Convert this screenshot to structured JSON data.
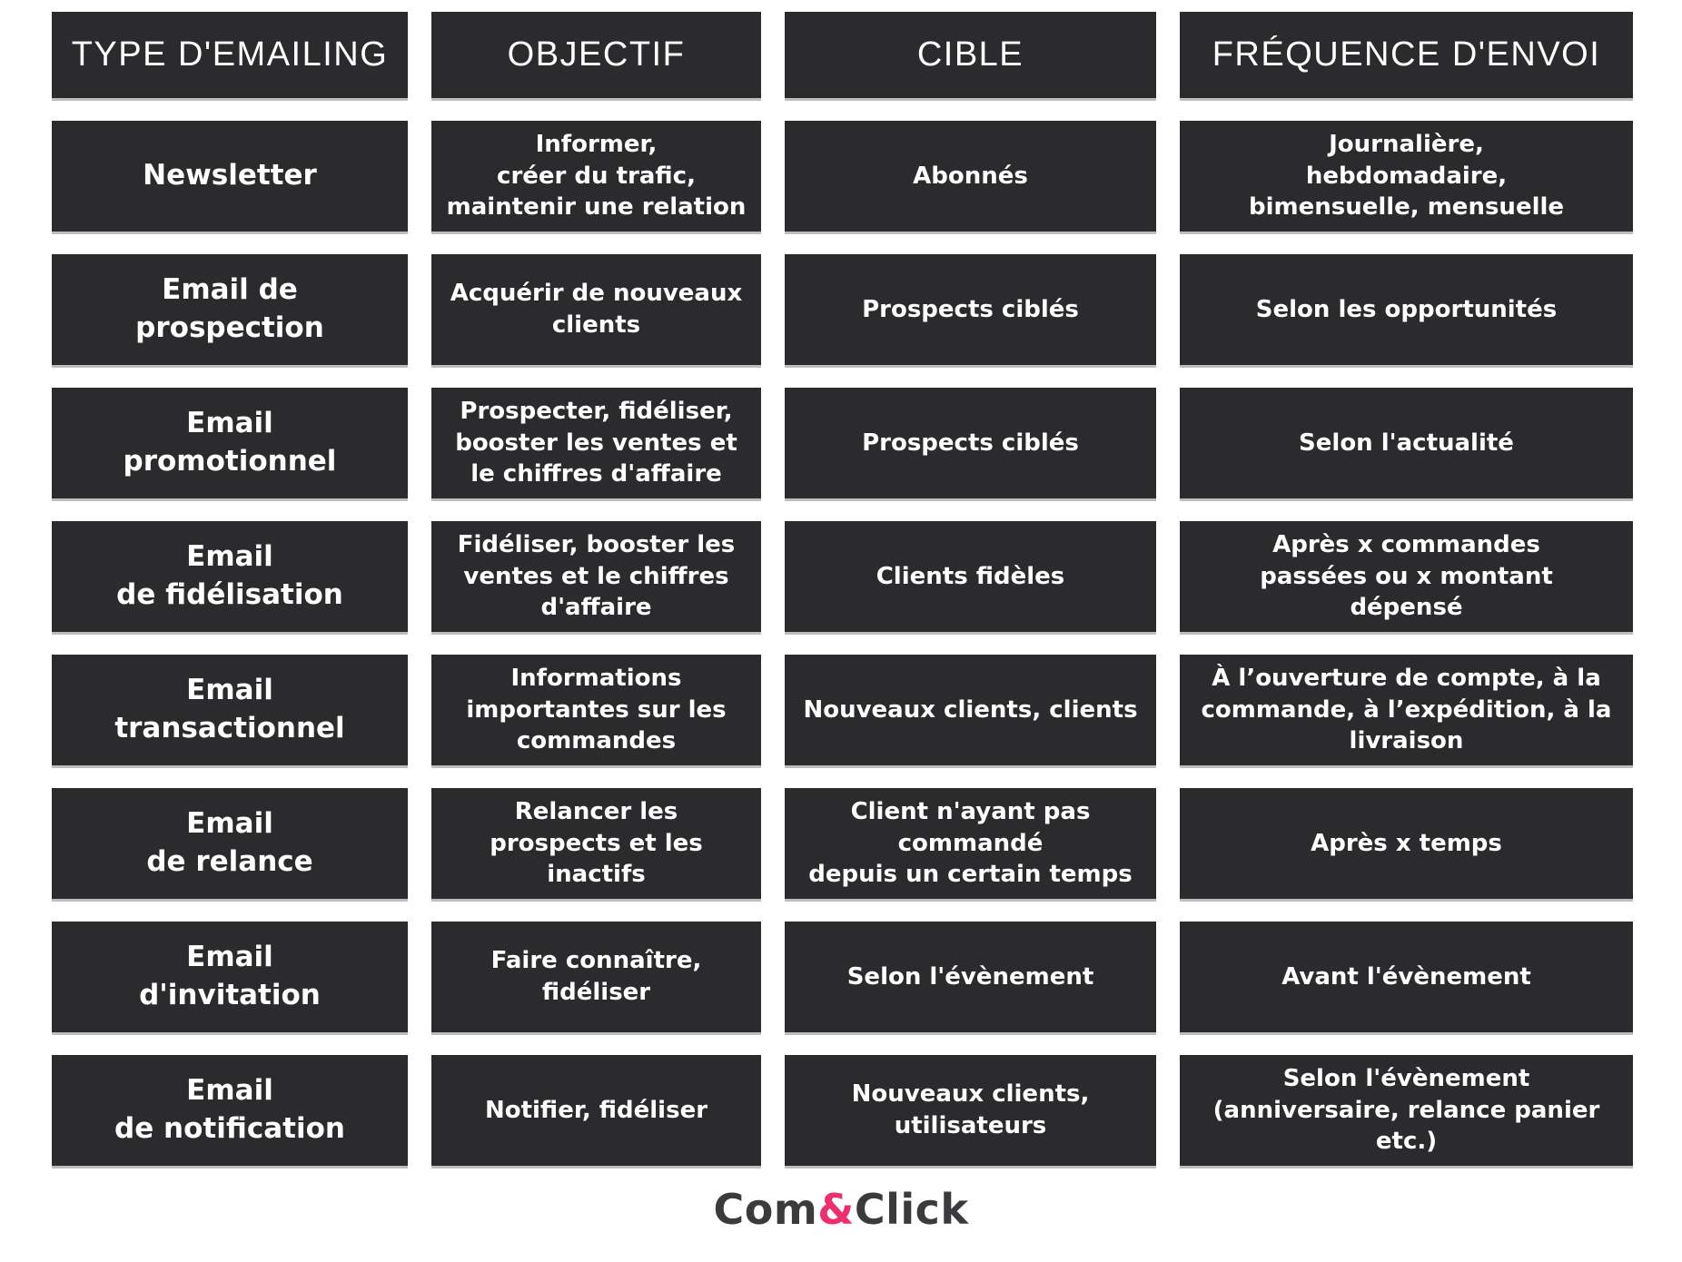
{
  "page": {
    "background_color": "#ffffff",
    "cell_background_color": "#2b2b2d",
    "cell_text_color": "#ffffff",
    "accent_pink": "#ed2f6e",
    "logo_text_color": "#3b3b3d"
  },
  "table": {
    "headers": [
      "TYPE D'EMAILING",
      "OBJECTIF",
      "CIBLE",
      "FRÉQUENCE D'ENVOI"
    ],
    "rows": [
      {
        "type": "Newsletter",
        "objectif": "Informer,\ncréer du trafic,\nmaintenir une relation",
        "cible": "Abonnés",
        "frequence": "Journalière,\nhebdomadaire,\nbimensuelle, mensuelle"
      },
      {
        "type": "Email de\nprospection",
        "objectif": "Acquérir de nouveaux\nclients",
        "cible": "Prospects ciblés",
        "frequence": "Selon les opportunités"
      },
      {
        "type": "Email\npromotionnel",
        "objectif": "Prospecter, fidéliser,\nbooster les ventes et\nle chiffres d'affaire",
        "cible": "Prospects ciblés",
        "frequence": "Selon l'actualité"
      },
      {
        "type": "Email\nde fidélisation",
        "objectif": "Fidéliser, booster les\nventes et le chiffres\nd'affaire",
        "cible": "Clients fidèles",
        "frequence": "Après x commandes\npassées ou x montant\ndépensé"
      },
      {
        "type": "Email\ntransactionnel",
        "objectif": "Informations\nimportantes sur les\ncommandes",
        "cible": "Nouveaux clients, clients",
        "frequence": "À l’ouverture de compte, à la\ncommande, à l’expédition, à la\nlivraison"
      },
      {
        "type": "Email\nde relance",
        "objectif": "Relancer les\nprospects et les\ninactifs",
        "cible": "Client n'ayant pas\ncommandé\ndepuis un certain temps",
        "frequence": "Après x temps"
      },
      {
        "type": "Email\nd'invitation",
        "objectif": "Faire connaître,\nfidéliser",
        "cible": "Selon l'évènement",
        "frequence": "Avant l'évènement"
      },
      {
        "type": "Email\nde notification",
        "objectif": "Notifier, fidéliser",
        "cible": "Nouveaux clients,\nutilisateurs",
        "frequence": "Selon l'évènement\n(anniversaire, relance panier\netc.)"
      }
    ]
  },
  "footer": {
    "logo_part1": "Com",
    "logo_amp": "&",
    "logo_part2": "Click"
  }
}
